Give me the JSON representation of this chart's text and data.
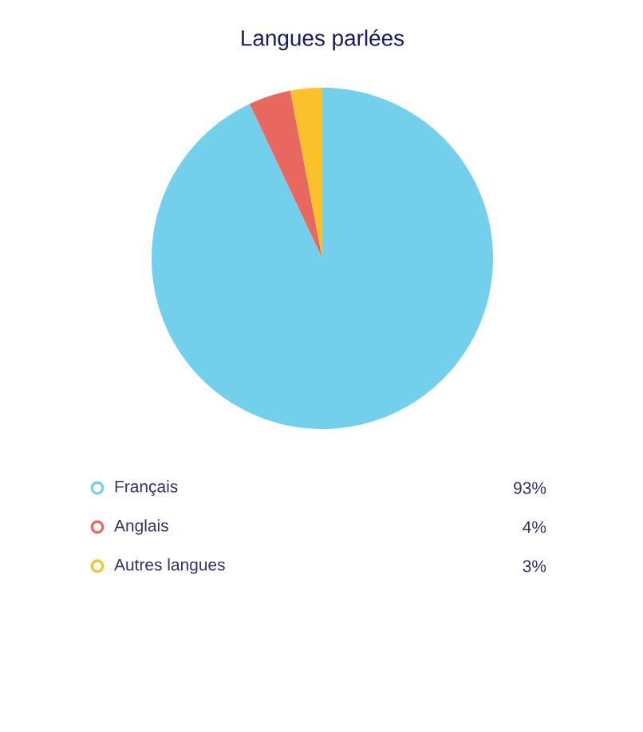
{
  "chart_data": {
    "type": "pie",
    "title": "Langues parlées",
    "categories": [
      "Français",
      "Anglais",
      "Autres langues"
    ],
    "values": [
      93,
      4,
      3
    ],
    "colors": [
      "#72d0ec",
      "#e8675e",
      "#fcc12a"
    ],
    "value_labels": [
      "93%",
      "4%",
      "3%"
    ],
    "legend": "bottom"
  }
}
